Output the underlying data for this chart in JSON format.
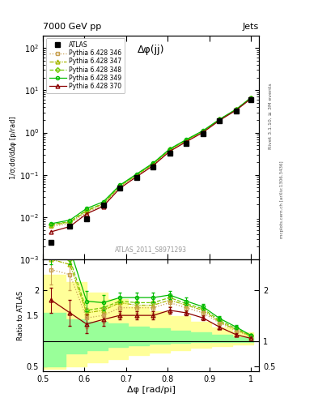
{
  "title_top": "7000 GeV pp",
  "title_right": "Jets",
  "annotation_main": "Δφ(jj)",
  "annotation_ref": "ATLAS_2011_S8971293",
  "ylabel_main": "1/σ;dσ/dΔφ [p/rad]",
  "ylabel_ratio": "Ratio to ATLAS",
  "xlabel": "Δφ [rad/pi]",
  "right_label": "Rivet 3.1.10, ≥ 3M events",
  "right_label2": "mcplots.cern.ch [arXiv:1306.3436]",
  "atlas_x": [
    0.52,
    0.565,
    0.605,
    0.645,
    0.685,
    0.725,
    0.765,
    0.805,
    0.845,
    0.885,
    0.925,
    0.965,
    1.0
  ],
  "atlas_y": [
    0.0025,
    0.006,
    0.009,
    0.019,
    0.048,
    0.085,
    0.155,
    0.32,
    0.55,
    0.95,
    1.9,
    3.2,
    6.0
  ],
  "py346_x": [
    0.52,
    0.565,
    0.605,
    0.645,
    0.685,
    0.725,
    0.765,
    0.805,
    0.845,
    0.885,
    0.925,
    0.965,
    1.0
  ],
  "py346_y": [
    0.006,
    0.007,
    0.013,
    0.019,
    0.052,
    0.095,
    0.175,
    0.38,
    0.64,
    1.05,
    2.0,
    3.5,
    6.5
  ],
  "py346_color": "#c8a050",
  "py346_label": "Pythia 6.428 346",
  "py347_x": [
    0.52,
    0.565,
    0.605,
    0.645,
    0.685,
    0.725,
    0.765,
    0.805,
    0.845,
    0.885,
    0.925,
    0.965,
    1.0
  ],
  "py347_y": [
    0.0065,
    0.0075,
    0.014,
    0.0205,
    0.054,
    0.098,
    0.18,
    0.39,
    0.66,
    1.07,
    2.02,
    3.52,
    6.55
  ],
  "py347_color": "#a8b800",
  "py347_label": "Pythia 6.428 347",
  "py348_x": [
    0.52,
    0.565,
    0.605,
    0.645,
    0.685,
    0.725,
    0.765,
    0.805,
    0.845,
    0.885,
    0.925,
    0.965,
    1.0
  ],
  "py348_y": [
    0.0067,
    0.0078,
    0.0145,
    0.021,
    0.055,
    0.1,
    0.185,
    0.4,
    0.67,
    1.09,
    2.04,
    3.54,
    6.6
  ],
  "py348_color": "#70c800",
  "py348_label": "Pythia 6.428 348",
  "py349_x": [
    0.52,
    0.565,
    0.605,
    0.645,
    0.685,
    0.725,
    0.765,
    0.805,
    0.845,
    0.885,
    0.925,
    0.965,
    1.0
  ],
  "py349_y": [
    0.007,
    0.0085,
    0.016,
    0.023,
    0.057,
    0.104,
    0.19,
    0.41,
    0.685,
    1.11,
    2.07,
    3.57,
    6.65
  ],
  "py349_color": "#00bb00",
  "py349_label": "Pythia 6.428 349",
  "py370_x": [
    0.52,
    0.565,
    0.605,
    0.645,
    0.685,
    0.725,
    0.765,
    0.805,
    0.845,
    0.885,
    0.925,
    0.965,
    1.0
  ],
  "py370_y": [
    0.0045,
    0.006,
    0.012,
    0.018,
    0.048,
    0.09,
    0.165,
    0.36,
    0.61,
    1.01,
    1.95,
    3.4,
    6.3
  ],
  "py370_color": "#8b0000",
  "py370_label": "Pythia 6.428 370",
  "ratio_346": [
    2.4,
    2.3,
    1.45,
    1.5,
    1.65,
    1.65,
    1.65,
    1.75,
    1.65,
    1.55,
    1.35,
    1.2,
    1.08
  ],
  "ratio_347": [
    2.6,
    2.5,
    1.55,
    1.6,
    1.75,
    1.7,
    1.7,
    1.8,
    1.7,
    1.6,
    1.37,
    1.22,
    1.09
  ],
  "ratio_348": [
    2.68,
    2.6,
    1.6,
    1.65,
    1.78,
    1.75,
    1.75,
    1.85,
    1.73,
    1.63,
    1.4,
    1.24,
    1.1
  ],
  "ratio_349": [
    2.8,
    2.8,
    1.78,
    1.75,
    1.85,
    1.85,
    1.85,
    1.9,
    1.78,
    1.67,
    1.44,
    1.27,
    1.11
  ],
  "ratio_370": [
    1.8,
    1.55,
    1.33,
    1.42,
    1.5,
    1.5,
    1.5,
    1.6,
    1.55,
    1.45,
    1.27,
    1.12,
    1.05
  ],
  "ratio_346_err": [
    0.3,
    0.3,
    0.2,
    0.15,
    0.1,
    0.1,
    0.1,
    0.08,
    0.07,
    0.06,
    0.05,
    0.04,
    0.03
  ],
  "ratio_349_err": [
    0.3,
    0.3,
    0.2,
    0.15,
    0.1,
    0.1,
    0.1,
    0.08,
    0.07,
    0.06,
    0.05,
    0.04,
    0.03
  ],
  "ratio_370_err": [
    0.25,
    0.25,
    0.18,
    0.12,
    0.08,
    0.08,
    0.08,
    0.06,
    0.05,
    0.05,
    0.04,
    0.03,
    0.02
  ],
  "band_edges": [
    0.5,
    0.555,
    0.605,
    0.655,
    0.705,
    0.755,
    0.805,
    0.855,
    0.905,
    0.955,
    1.005
  ],
  "band_green_lo": [
    0.5,
    0.75,
    0.82,
    0.88,
    0.92,
    0.94,
    0.96,
    0.97,
    0.975,
    0.98,
    0.99
  ],
  "band_green_hi": [
    1.55,
    1.42,
    1.38,
    1.35,
    1.28,
    1.25,
    1.2,
    1.16,
    1.12,
    1.08,
    1.05
  ],
  "band_yellow_lo": [
    0.45,
    0.5,
    0.58,
    0.65,
    0.72,
    0.77,
    0.82,
    0.86,
    0.895,
    0.935,
    0.98
  ],
  "band_yellow_hi": [
    2.3,
    2.15,
    1.95,
    1.82,
    1.68,
    1.58,
    1.48,
    1.37,
    1.27,
    1.17,
    1.07
  ],
  "xlim": [
    0.5,
    1.02
  ],
  "ylim_main": [
    0.001,
    200
  ],
  "ylim_ratio": [
    0.4,
    2.6
  ],
  "yticks_main_right": [
    1,
    0.5
  ],
  "yticks_ratio_right": [
    2,
    1,
    0.5
  ],
  "bg_color": "#ffffff"
}
